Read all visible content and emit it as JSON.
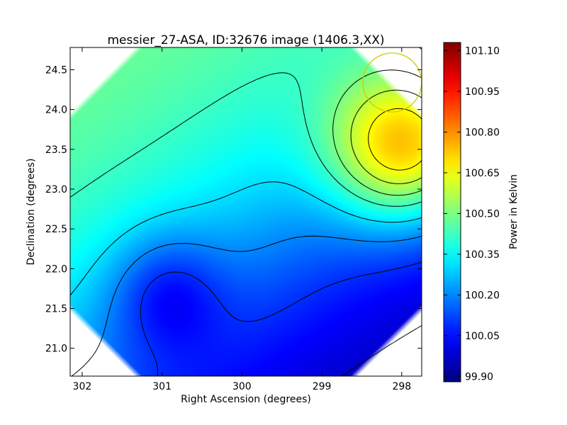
{
  "chart_data": {
    "type": "heatmap",
    "title": "messier_27-ASA, ID:32676 image (1406.3,XX)",
    "xlabel": "Right Ascension (degrees)",
    "ylabel": "Declination (degrees)",
    "colorbar_label": "Power in Kelvin",
    "colormap": "jet",
    "x_axis_inverted": true,
    "xlim": [
      302.15,
      297.75
    ],
    "ylim": [
      20.65,
      24.78
    ],
    "x_ticks": [
      {
        "value": 302,
        "label": "302"
      },
      {
        "value": 301,
        "label": "301"
      },
      {
        "value": 300,
        "label": "300"
      },
      {
        "value": 299,
        "label": "299"
      },
      {
        "value": 298,
        "label": "298"
      }
    ],
    "y_ticks": [
      {
        "value": 21.0,
        "label": "21.0"
      },
      {
        "value": 21.5,
        "label": "21.5"
      },
      {
        "value": 22.0,
        "label": "22.0"
      },
      {
        "value": 22.5,
        "label": "22.5"
      },
      {
        "value": 23.0,
        "label": "23.0"
      },
      {
        "value": 23.5,
        "label": "23.5"
      },
      {
        "value": 24.0,
        "label": "24.0"
      },
      {
        "value": 24.5,
        "label": "24.5"
      }
    ],
    "colorbar_range": [
      99.88,
      101.13
    ],
    "colorbar_ticks": [
      {
        "value": 99.9,
        "label": "99.90"
      },
      {
        "value": 100.05,
        "label": "100.05"
      },
      {
        "value": 100.2,
        "label": "100.20"
      },
      {
        "value": 100.35,
        "label": "100.35"
      },
      {
        "value": 100.5,
        "label": "100.50"
      },
      {
        "value": 100.65,
        "label": "100.65"
      },
      {
        "value": 100.8,
        "label": "100.80"
      },
      {
        "value": 100.95,
        "label": "100.95"
      },
      {
        "value": 101.1,
        "label": "101.10"
      }
    ],
    "field": {
      "baseline": 99.89,
      "tilted_plane": {
        "nx": -0.58,
        "ny": 0.81,
        "offset": -0.12,
        "amplitude": 0.62,
        "width": 0.25
      },
      "components": [
        {
          "ra": 297.95,
          "dec": 23.5,
          "amplitude": 0.52,
          "width_ra": 0.95,
          "width_dec": 0.95
        },
        {
          "ra": 300.95,
          "dec": 21.7,
          "amplitude": -0.19,
          "width_ra": 0.7,
          "width_dec": 0.75
        }
      ]
    },
    "contour_levels": [
      99.98,
      100.09,
      100.2,
      100.31,
      100.42,
      100.5,
      100.58,
      100.66,
      100.74,
      100.82,
      100.9,
      100.98,
      101.06
    ],
    "annotations": [
      {
        "type": "circle",
        "ra": 298.12,
        "dec": 24.34,
        "radius_deg": 0.37,
        "color": "#cccc00"
      }
    ]
  }
}
